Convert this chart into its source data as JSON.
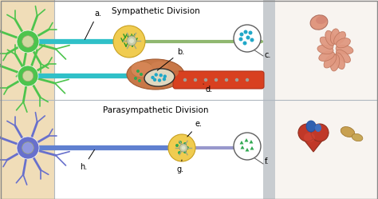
{
  "bg_left_color": "#f0ddb8",
  "title_sympathetic": "Sympathetic Division",
  "title_parasympathetic": "Parasympathetic Division",
  "label_a": "a.",
  "label_b": "b.",
  "label_c": "c.",
  "label_d": "d.",
  "label_e": "e.",
  "label_f": "f.",
  "label_g": "g.",
  "label_h": "h.",
  "neuron_green_body": "#4dc44d",
  "neuron_green_dark": "#2a9a2a",
  "neuron_blue_body": "#6870cc",
  "neuron_blue_dark": "#4455aa",
  "axon_teal": "#30c0c8",
  "axon_teal2": "#50c8a0",
  "axon_olive": "#90b870",
  "axon_red": "#e05828",
  "axon_blue": "#6080d0",
  "axon_lavender": "#9898cc",
  "ganglion_yellow": "#f0cc50",
  "ganglion_border": "#c8a020",
  "adrenal_orange": "#c87848",
  "adrenal_inner": "#e8dcc0",
  "dot_teal": "#20a8c8",
  "dot_green": "#30a850",
  "mag_circle_border": "#606060",
  "divider_color": "#b0b8c0",
  "gray_strip_color": "#c8ccd0",
  "right_bg_color": "#f8f4f0",
  "intestine_color": "#e09080",
  "intestine_dark": "#c07060",
  "heart_red": "#c03020",
  "heart_dark": "#902010",
  "heart_blue": "#3060b0",
  "adrenal_tan": "#c8a060",
  "vessel_red": "#d84020",
  "neuron_nucleus_color": "#d0d8a0",
  "neuron_nucleus_border": "#a0a870"
}
